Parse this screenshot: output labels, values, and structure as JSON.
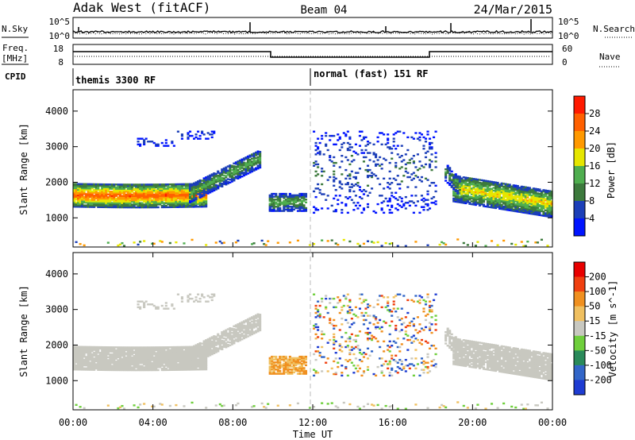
{
  "header": {
    "radar": "Adak West (fitACF)",
    "beam": "Beam 04",
    "date": "24/Mar/2015"
  },
  "noise_panel": {
    "left_label": "N.Sky",
    "right_label": "N.Search",
    "ticks": [
      "10^5",
      "10^0"
    ]
  },
  "freq_panel": {
    "left_label_1": "Freq.",
    "left_label_2": "[MHz]",
    "right_label": "Nave",
    "left_ticks": [
      "18",
      "8"
    ],
    "right_ticks": [
      "60",
      "0"
    ]
  },
  "cpid_panel": {
    "label": "CPID",
    "mode_1": "themis 3300 RF",
    "mode_2": "normal (fast) 151 RF"
  },
  "chart_data": [
    {
      "type": "heatmap",
      "quantity": "power",
      "ylabel": "Slant Range [km]",
      "yticks": [
        1000,
        2000,
        3000,
        4000
      ],
      "ylim": [
        180,
        4600
      ],
      "xlim": [
        0,
        24
      ],
      "colorbar_label": "Power [dB]",
      "colorbar_ticks": [
        4,
        8,
        12,
        16,
        20,
        24,
        28
      ],
      "colorbar_range": [
        0,
        32
      ],
      "colors": [
        "#0014ff",
        "#1c3fb8",
        "#3d7a3d",
        "#4fae4f",
        "#e6e600",
        "#ff9900",
        "#ff6000",
        "#ff1a00"
      ]
    },
    {
      "type": "heatmap",
      "quantity": "velocity",
      "ylabel": "Slant Range [km]",
      "yticks": [
        1000,
        2000,
        3000,
        4000
      ],
      "ylim": [
        180,
        4600
      ],
      "xlim": [
        0,
        24
      ],
      "xlabel": "Time UT",
      "xticks": [
        "00:00",
        "04:00",
        "08:00",
        "12:00",
        "16:00",
        "20:00",
        "00:00"
      ],
      "colorbar_label": "Velocity [m s^-1]",
      "colorbar_ticks": [
        200,
        100,
        50,
        15,
        -15,
        -50,
        -100,
        -200
      ],
      "colors": [
        "#1e3cd2",
        "#3266c8",
        "#2a8a5a",
        "#6fcf3c",
        "#c8c8c0",
        "#f0c060",
        "#f09020",
        "#f04010",
        "#e80000"
      ]
    }
  ],
  "time_axis": {
    "label": "Time UT",
    "ticks": [
      "00:00",
      "04:00",
      "08:00",
      "12:00",
      "16:00",
      "20:00",
      "00:00"
    ]
  }
}
